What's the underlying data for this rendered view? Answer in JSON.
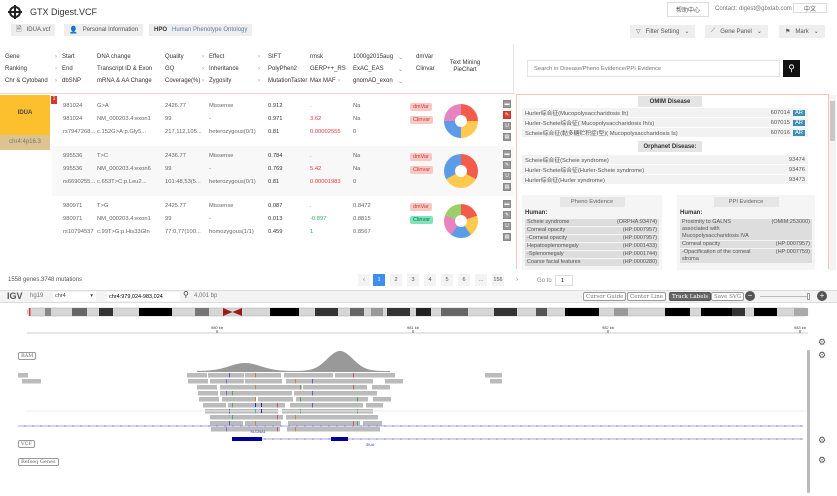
{
  "header": {
    "title": "GTX Digest.VCF",
    "help": "帮助中心",
    "contact": "Contact: digest@gbxlab.com",
    "lang": "中文"
  },
  "tabs": [
    {
      "label": "IDUA.vcf",
      "icon": "file-icon"
    },
    {
      "label": "Personal Information",
      "icon": "person-icon"
    },
    {
      "prefix": "HPO",
      "label": "Human Phenotype Ontology"
    }
  ],
  "toolbar": {
    "filter": "Filter Setting",
    "gene_panel": "Gene Panel",
    "mark": "Mark"
  },
  "columns": {
    "c1": [
      "Gene",
      "Ranking",
      "Chr & Cytoband"
    ],
    "c2": [
      "Start",
      "End",
      "dbSNP"
    ],
    "c3": [
      "DNA change",
      "Transcript ID & Exon",
      "mRNA & AA Change"
    ],
    "c4": [
      "Quality",
      "GQ",
      "Coverage(%)"
    ],
    "c5": [
      "Effect",
      "Inheritance",
      "Zygosity"
    ],
    "c6": [
      "SIFT",
      "PolyPhen2",
      "MutationTaster"
    ],
    "c7": [
      "rmsk",
      "GERP++_RS",
      "Max MAF"
    ],
    "c8": [
      "1000g2015aug",
      "ExAC_EAS",
      "gnomAD_exon"
    ],
    "c9": [
      "dmVar",
      "Clinvar"
    ],
    "c10": "Text Mining PieChart"
  },
  "gene": {
    "name": "IDUA",
    "cytoband": "chr4:4p16.3",
    "rank": "1"
  },
  "mutations": [
    {
      "rows": [
        [
          "981024",
          "G>A",
          "2426.77",
          "Missense",
          "0.912",
          ".",
          "Na"
        ],
        [
          "981024",
          "NM_000203.4:exon1",
          "99",
          "-",
          "0.971",
          "3.62",
          "Na"
        ],
        [
          "rs7947268...",
          "c.152G>A:p.Gly5...",
          "217,112,105...",
          "heterozygous(0/1)",
          "0.81",
          "0.00002555",
          "0"
        ]
      ],
      "dmvar": "dmVar",
      "clinvar": "Clinvar",
      "clinvar_color": "red",
      "pie": [
        {
          "color": "#f25c4a",
          "value": 25
        },
        {
          "color": "#fdc94e",
          "value": 25
        },
        {
          "color": "#5b9be8",
          "value": 25
        },
        {
          "color": "#e882c0",
          "value": 25
        }
      ]
    },
    {
      "rows": [
        [
          "995536",
          "T>C",
          "2436.77",
          "Missense",
          "0.784",
          ".",
          "Na"
        ],
        [
          "995536",
          "NM_000203.4:exon6",
          "99",
          "-",
          "0.769",
          "5.42",
          "Na"
        ],
        [
          "rs6690255...",
          "c.653T>C:p.Leu2...",
          "101:48,53(5...",
          "heterozygous(0/1)",
          "0.81",
          "0.00001983",
          "0"
        ]
      ],
      "dmvar": "dmVar",
      "clinvar": "Clinvar",
      "clinvar_color": "red",
      "pie": [
        {
          "color": "#f25c4a",
          "value": 33
        },
        {
          "color": "#fdc94e",
          "value": 34
        },
        {
          "color": "#5b9be8",
          "value": 33
        }
      ]
    },
    {
      "rows": [
        [
          "980971",
          "T>G",
          "2425.77",
          "Missense",
          "0.087",
          ".",
          "0.8472"
        ],
        [
          "980971",
          "NM_000203.4:exon1",
          "99",
          "-",
          "0.013",
          "-0.897",
          "0.8815"
        ],
        [
          "rs10794537",
          "c.99T>G:p.His33Gln",
          "77:0,77(100...",
          "homozygous(1/1)",
          "0.459",
          "1",
          "0.8567"
        ]
      ],
      "dmvar": "dmVar",
      "clinvar": "Clinvar",
      "clinvar_color": "green",
      "pie": [
        {
          "color": "#f25c4a",
          "value": 20
        },
        {
          "color": "#fdc94e",
          "value": 20
        },
        {
          "color": "#5b9be8",
          "value": 20
        },
        {
          "color": "#e882c0",
          "value": 20
        },
        {
          "color": "#9ccf6b",
          "value": 20
        }
      ]
    }
  ],
  "search": {
    "placeholder": "Search in Disease/Pheno Evidence/PPI Evidence"
  },
  "omim": {
    "title": "OMIM Disease",
    "rows": [
      {
        "name": "Hurler综合征(Mucopolysaccharidosis Ih)",
        "id": "607014",
        "tag": "AR"
      },
      {
        "name": "Hurler-Scheie综合征( Mucopolysaccharidosis Ih/s)",
        "id": "607015",
        "tag": "AR"
      },
      {
        "name": "Scheie综合征(黏多糖贮积症I型)( Mucopolysaccharidosis Is)",
        "id": "607016",
        "tag": "AR"
      }
    ]
  },
  "orphanet": {
    "title": "Orphanet Disease:",
    "rows": [
      {
        "name": "Scheie综合征(Scheie syndrome)",
        "id": "93474"
      },
      {
        "name": "Hurler-Scheie综合征(Hurler-Scheie syndrome)",
        "id": "93476"
      },
      {
        "name": "Hurler综合征(Hurler syndrome)",
        "id": "93473"
      }
    ]
  },
  "pheno": {
    "title": "Pheno Evidence",
    "sub": "Human:",
    "rows": [
      {
        "name": "Scheie syndrome",
        "id": "(ORPHA:93474)"
      },
      {
        "name": "Corneal opacity",
        "id": "(HP:0007957)"
      },
      {
        "name": "-Corneal opacity",
        "id": "(HP:0007957)"
      },
      {
        "name": "Hepatosplenomegaly",
        "id": "(HP:0001433)"
      },
      {
        "name": "-Splenomegaly",
        "id": "(HP:0001744)"
      },
      {
        "name": "Coarse facial features",
        "id": "(HP:0000280)"
      }
    ]
  },
  "ppi": {
    "title": "PPI Evidence",
    "sub": "Human:",
    "rows": [
      {
        "name": "Proximity to GALNS associated with Mucopolysaccharidosis IVA",
        "id": "(OMIM:253000)"
      },
      {
        "name": "Corneal opacity",
        "id": "(HP:0007957)"
      },
      {
        "name": "-Opacification of the corneal stroma",
        "id": "(HP:0007759)"
      }
    ]
  },
  "summary": "1558 genes.3748 mutations",
  "pagination": {
    "prev": "‹",
    "pages": [
      "1",
      "2",
      "3",
      "4",
      "5",
      "6",
      "...",
      "156"
    ],
    "current": "1",
    "next": "›",
    "goto_label": "Go to",
    "goto_value": "1"
  },
  "igv": {
    "logo": "IGV",
    "genome": "hg19",
    "chrom": "chr4",
    "locus": "chr4:979,024-983,024",
    "width": "4,001 bp",
    "buttons": [
      "Cursor Guide",
      "Center Line",
      "Track Labels",
      "Save SVG"
    ],
    "active_button": "Track Labels",
    "ruler": [
      "980 kb",
      "981 kb",
      "982 kb",
      "983 kb"
    ],
    "tracks": [
      "BAM",
      "VCF",
      "Refseq Genes"
    ],
    "genes": [
      "SLC26A1",
      "IDUA"
    ]
  }
}
